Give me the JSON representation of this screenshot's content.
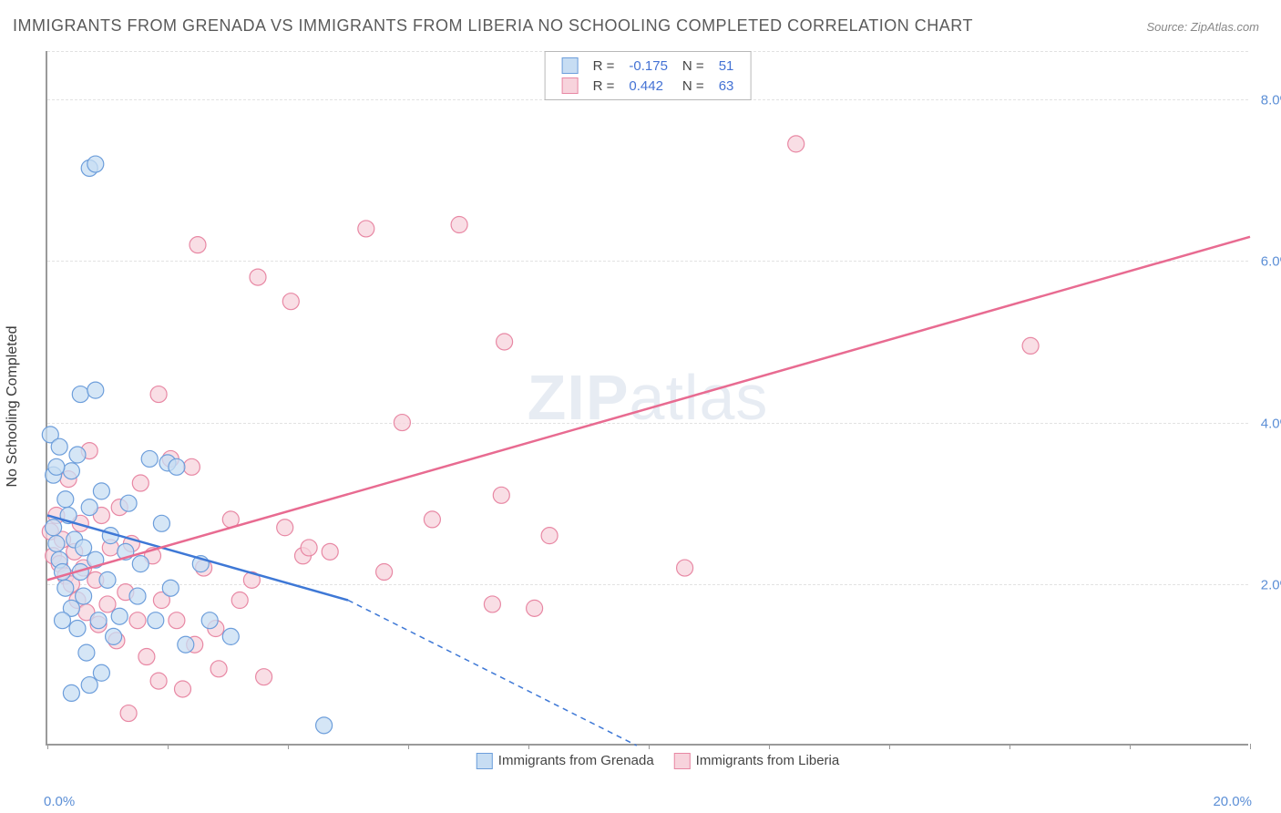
{
  "title": "IMMIGRANTS FROM GRENADA VS IMMIGRANTS FROM LIBERIA NO SCHOOLING COMPLETED CORRELATION CHART",
  "source": "Source: ZipAtlas.com",
  "ylabel": "No Schooling Completed",
  "watermark_bold": "ZIP",
  "watermark_light": "atlas",
  "chart": {
    "type": "scatter",
    "xlim": [
      0,
      20
    ],
    "ylim": [
      0,
      8.6
    ],
    "y_ticks": [
      2.0,
      4.0,
      6.0,
      8.0
    ],
    "y_tick_labels": [
      "2.0%",
      "4.0%",
      "6.0%",
      "8.0%"
    ],
    "x_ticks": [
      0,
      2,
      4,
      6,
      8,
      10,
      12,
      14,
      16,
      18,
      20
    ],
    "x_tick_labels_shown": {
      "0": "0.0%",
      "20": "20.0%"
    },
    "grid_color": "#e2e2e2",
    "axis_color": "#9a9a9a",
    "background_color": "#ffffff",
    "series": [
      {
        "name": "Immigrants from Grenada",
        "marker_fill": "#c7ddf3",
        "marker_stroke": "#6d9edb",
        "marker_radius": 9,
        "line_color": "#3e78d6",
        "line_width": 2.5,
        "R": -0.175,
        "N": 51,
        "trend": {
          "x1": 0,
          "y1": 2.85,
          "x2_solid": 5.0,
          "y2_solid": 1.8,
          "x2_dash": 9.8,
          "y2_dash": 0.0
        },
        "points": [
          [
            0.05,
            3.85
          ],
          [
            0.1,
            3.35
          ],
          [
            0.1,
            2.7
          ],
          [
            0.15,
            2.5
          ],
          [
            0.2,
            2.3
          ],
          [
            0.2,
            3.7
          ],
          [
            0.25,
            2.15
          ],
          [
            0.3,
            3.05
          ],
          [
            0.3,
            1.95
          ],
          [
            0.35,
            2.85
          ],
          [
            0.4,
            3.4
          ],
          [
            0.4,
            1.7
          ],
          [
            0.45,
            2.55
          ],
          [
            0.5,
            3.6
          ],
          [
            0.5,
            1.45
          ],
          [
            0.55,
            2.15
          ],
          [
            0.6,
            1.85
          ],
          [
            0.6,
            2.45
          ],
          [
            0.65,
            1.15
          ],
          [
            0.7,
            2.95
          ],
          [
            0.7,
            0.75
          ],
          [
            0.8,
            2.3
          ],
          [
            0.85,
            1.55
          ],
          [
            0.9,
            3.15
          ],
          [
            0.9,
            0.9
          ],
          [
            1.0,
            2.05
          ],
          [
            1.05,
            2.6
          ],
          [
            1.1,
            1.35
          ],
          [
            1.2,
            1.6
          ],
          [
            1.3,
            2.4
          ],
          [
            1.35,
            3.0
          ],
          [
            1.5,
            1.85
          ],
          [
            1.55,
            2.25
          ],
          [
            1.7,
            3.55
          ],
          [
            1.8,
            1.55
          ],
          [
            1.9,
            2.75
          ],
          [
            2.0,
            3.5
          ],
          [
            2.05,
            1.95
          ],
          [
            2.15,
            3.45
          ],
          [
            2.3,
            1.25
          ],
          [
            2.55,
            2.25
          ],
          [
            2.7,
            1.55
          ],
          [
            3.05,
            1.35
          ],
          [
            0.55,
            4.35
          ],
          [
            0.8,
            4.4
          ],
          [
            0.7,
            7.15
          ],
          [
            0.8,
            7.2
          ],
          [
            4.6,
            0.25
          ],
          [
            0.4,
            0.65
          ],
          [
            0.15,
            3.45
          ],
          [
            0.25,
            1.55
          ]
        ]
      },
      {
        "name": "Immigrants from Liberia",
        "marker_fill": "#f7d3dc",
        "marker_stroke": "#e888a4",
        "marker_radius": 9,
        "line_color": "#e86b91",
        "line_width": 2.5,
        "R": 0.442,
        "N": 63,
        "trend": {
          "x1": 0,
          "y1": 2.05,
          "x2_solid": 20,
          "y2_solid": 6.3
        },
        "points": [
          [
            0.05,
            2.65
          ],
          [
            0.1,
            2.35
          ],
          [
            0.15,
            2.85
          ],
          [
            0.2,
            2.25
          ],
          [
            0.25,
            2.55
          ],
          [
            0.3,
            2.1
          ],
          [
            0.35,
            3.3
          ],
          [
            0.4,
            2.0
          ],
          [
            0.45,
            2.4
          ],
          [
            0.5,
            1.8
          ],
          [
            0.55,
            2.75
          ],
          [
            0.6,
            2.2
          ],
          [
            0.65,
            1.65
          ],
          [
            0.7,
            3.65
          ],
          [
            0.8,
            2.05
          ],
          [
            0.85,
            1.5
          ],
          [
            0.9,
            2.85
          ],
          [
            1.0,
            1.75
          ],
          [
            1.05,
            2.45
          ],
          [
            1.15,
            1.3
          ],
          [
            1.2,
            2.95
          ],
          [
            1.3,
            1.9
          ],
          [
            1.35,
            0.4
          ],
          [
            1.4,
            2.5
          ],
          [
            1.5,
            1.55
          ],
          [
            1.55,
            3.25
          ],
          [
            1.65,
            1.1
          ],
          [
            1.75,
            2.35
          ],
          [
            1.85,
            0.8
          ],
          [
            1.9,
            1.8
          ],
          [
            2.05,
            3.55
          ],
          [
            2.15,
            1.55
          ],
          [
            2.25,
            0.7
          ],
          [
            2.4,
            3.45
          ],
          [
            2.45,
            1.25
          ],
          [
            2.6,
            2.2
          ],
          [
            2.8,
            1.45
          ],
          [
            2.85,
            0.95
          ],
          [
            3.05,
            2.8
          ],
          [
            3.2,
            1.8
          ],
          [
            3.4,
            2.05
          ],
          [
            3.6,
            0.85
          ],
          [
            3.95,
            2.7
          ],
          [
            4.25,
            2.35
          ],
          [
            4.35,
            2.45
          ],
          [
            4.7,
            2.4
          ],
          [
            5.3,
            6.4
          ],
          [
            5.6,
            2.15
          ],
          [
            5.9,
            4.0
          ],
          [
            6.4,
            2.8
          ],
          [
            6.85,
            6.45
          ],
          [
            7.4,
            1.75
          ],
          [
            7.55,
            3.1
          ],
          [
            7.6,
            5.0
          ],
          [
            8.1,
            1.7
          ],
          [
            8.35,
            2.6
          ],
          [
            10.6,
            2.2
          ],
          [
            12.45,
            7.45
          ],
          [
            16.35,
            4.95
          ],
          [
            1.85,
            4.35
          ],
          [
            2.5,
            6.2
          ],
          [
            3.5,
            5.8
          ],
          [
            4.05,
            5.5
          ]
        ]
      }
    ]
  },
  "legend_top": {
    "rows": [
      {
        "swatch_fill": "#c7ddf3",
        "swatch_stroke": "#6d9edb",
        "R_label": "R =",
        "R_val": "-0.175",
        "N_label": "N =",
        "N_val": "51"
      },
      {
        "swatch_fill": "#f7d3dc",
        "swatch_stroke": "#e888a4",
        "R_label": "R =",
        "R_val": "0.442",
        "N_label": "N =",
        "N_val": "63"
      }
    ]
  },
  "legend_bottom": {
    "items": [
      {
        "swatch_fill": "#c7ddf3",
        "swatch_stroke": "#6d9edb",
        "label": "Immigrants from Grenada"
      },
      {
        "swatch_fill": "#f7d3dc",
        "swatch_stroke": "#e888a4",
        "label": "Immigrants from Liberia"
      }
    ]
  }
}
